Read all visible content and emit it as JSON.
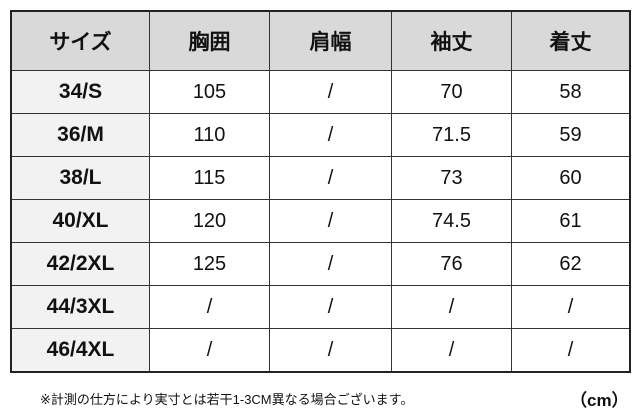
{
  "headers": [
    "サイズ",
    "胸囲",
    "肩幅",
    "袖丈",
    "着丈"
  ],
  "rows": [
    [
      "34/S",
      "105",
      "/",
      "70",
      "58"
    ],
    [
      "36/M",
      "110",
      "/",
      "71.5",
      "59"
    ],
    [
      "38/L",
      "115",
      "/",
      "73",
      "60"
    ],
    [
      "40/XL",
      "120",
      "/",
      "74.5",
      "61"
    ],
    [
      "42/2XL",
      "125",
      "/",
      "76",
      "62"
    ],
    [
      "44/3XL",
      "/",
      "/",
      "/",
      "/"
    ],
    [
      "46/4XL",
      "/",
      "/",
      "/",
      "/"
    ]
  ],
  "note": "※計測の仕方により実寸とは若干1-3CM異なる場合ございます。",
  "unit": "（cm）",
  "colors": {
    "header_bg": "#d9d9d9",
    "size_col_bg": "#f2f2f2"
  }
}
